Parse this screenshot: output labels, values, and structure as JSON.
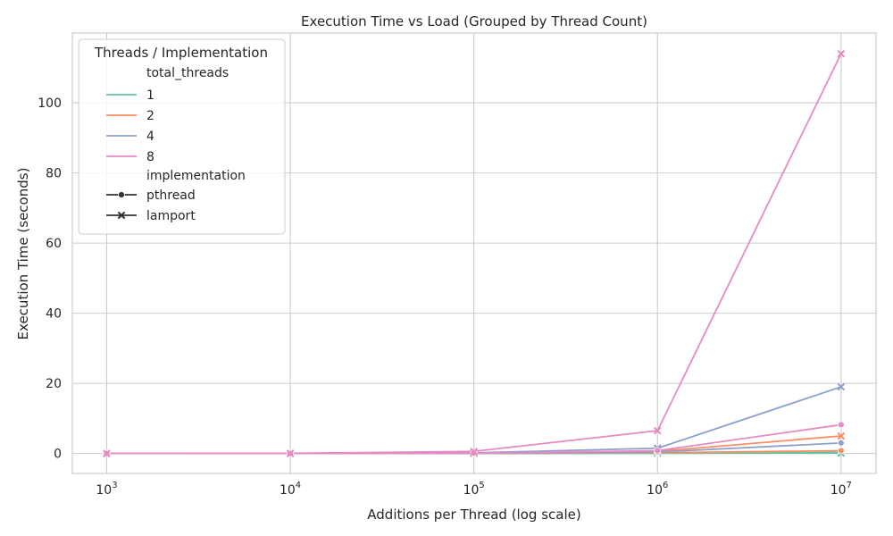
{
  "chart_data": {
    "type": "line",
    "title": "Execution Time vs Load (Grouped by Thread Count)",
    "xlabel": "Additions per Thread (log scale)",
    "ylabel": "Execution Time (seconds)",
    "x_scale": "log",
    "x": [
      1000,
      10000,
      100000,
      1000000,
      10000000
    ],
    "xlim": [
      650,
      15500000
    ],
    "ylim": [
      -5.7,
      119.9
    ],
    "x_tick_values": [
      1000,
      10000,
      100000,
      1000000,
      10000000
    ],
    "x_tick_base": "10",
    "x_tick_exponents": [
      "3",
      "4",
      "5",
      "6",
      "7"
    ],
    "y_ticks": [
      0,
      20,
      40,
      60,
      80,
      100
    ],
    "grid": true,
    "legend": {
      "title": "Threads / Implementation",
      "placement": "top-left",
      "hue_header": "total_threads",
      "style_header": "implementation",
      "hue_entries": [
        "1",
        "2",
        "4",
        "8"
      ],
      "style_entries": [
        {
          "label": "pthread",
          "marker": "circle"
        },
        {
          "label": "lamport",
          "marker": "x"
        }
      ]
    },
    "series": [
      {
        "threads": "1",
        "implementation": "pthread",
        "color": "#66c2a5",
        "marker": "circle",
        "values": [
          0.0,
          0.0,
          0.02,
          0.1,
          0.3
        ]
      },
      {
        "threads": "1",
        "implementation": "lamport",
        "color": "#66c2a5",
        "marker": "x",
        "values": [
          0.0,
          0.0,
          0.02,
          0.08,
          0.1
        ]
      },
      {
        "threads": "2",
        "implementation": "pthread",
        "color": "#fc8d62",
        "marker": "circle",
        "values": [
          0.0,
          0.0,
          0.03,
          0.2,
          0.8
        ]
      },
      {
        "threads": "2",
        "implementation": "lamport",
        "color": "#fc8d62",
        "marker": "x",
        "values": [
          0.0,
          0.0,
          0.08,
          0.6,
          5.0
        ]
      },
      {
        "threads": "4",
        "implementation": "pthread",
        "color": "#8da0cb",
        "marker": "circle",
        "values": [
          0.0,
          0.0,
          0.05,
          0.4,
          3.0
        ]
      },
      {
        "threads": "4",
        "implementation": "lamport",
        "color": "#8da0cb",
        "marker": "x",
        "values": [
          0.0,
          0.01,
          0.2,
          1.5,
          19.0
        ]
      },
      {
        "threads": "8",
        "implementation": "pthread",
        "color": "#e78ac3",
        "marker": "circle",
        "values": [
          0.0,
          0.0,
          0.1,
          0.8,
          8.2
        ]
      },
      {
        "threads": "8",
        "implementation": "lamport",
        "color": "#e78ac3",
        "marker": "x",
        "values": [
          0.0,
          0.05,
          0.6,
          6.5,
          114.0
        ]
      }
    ]
  }
}
